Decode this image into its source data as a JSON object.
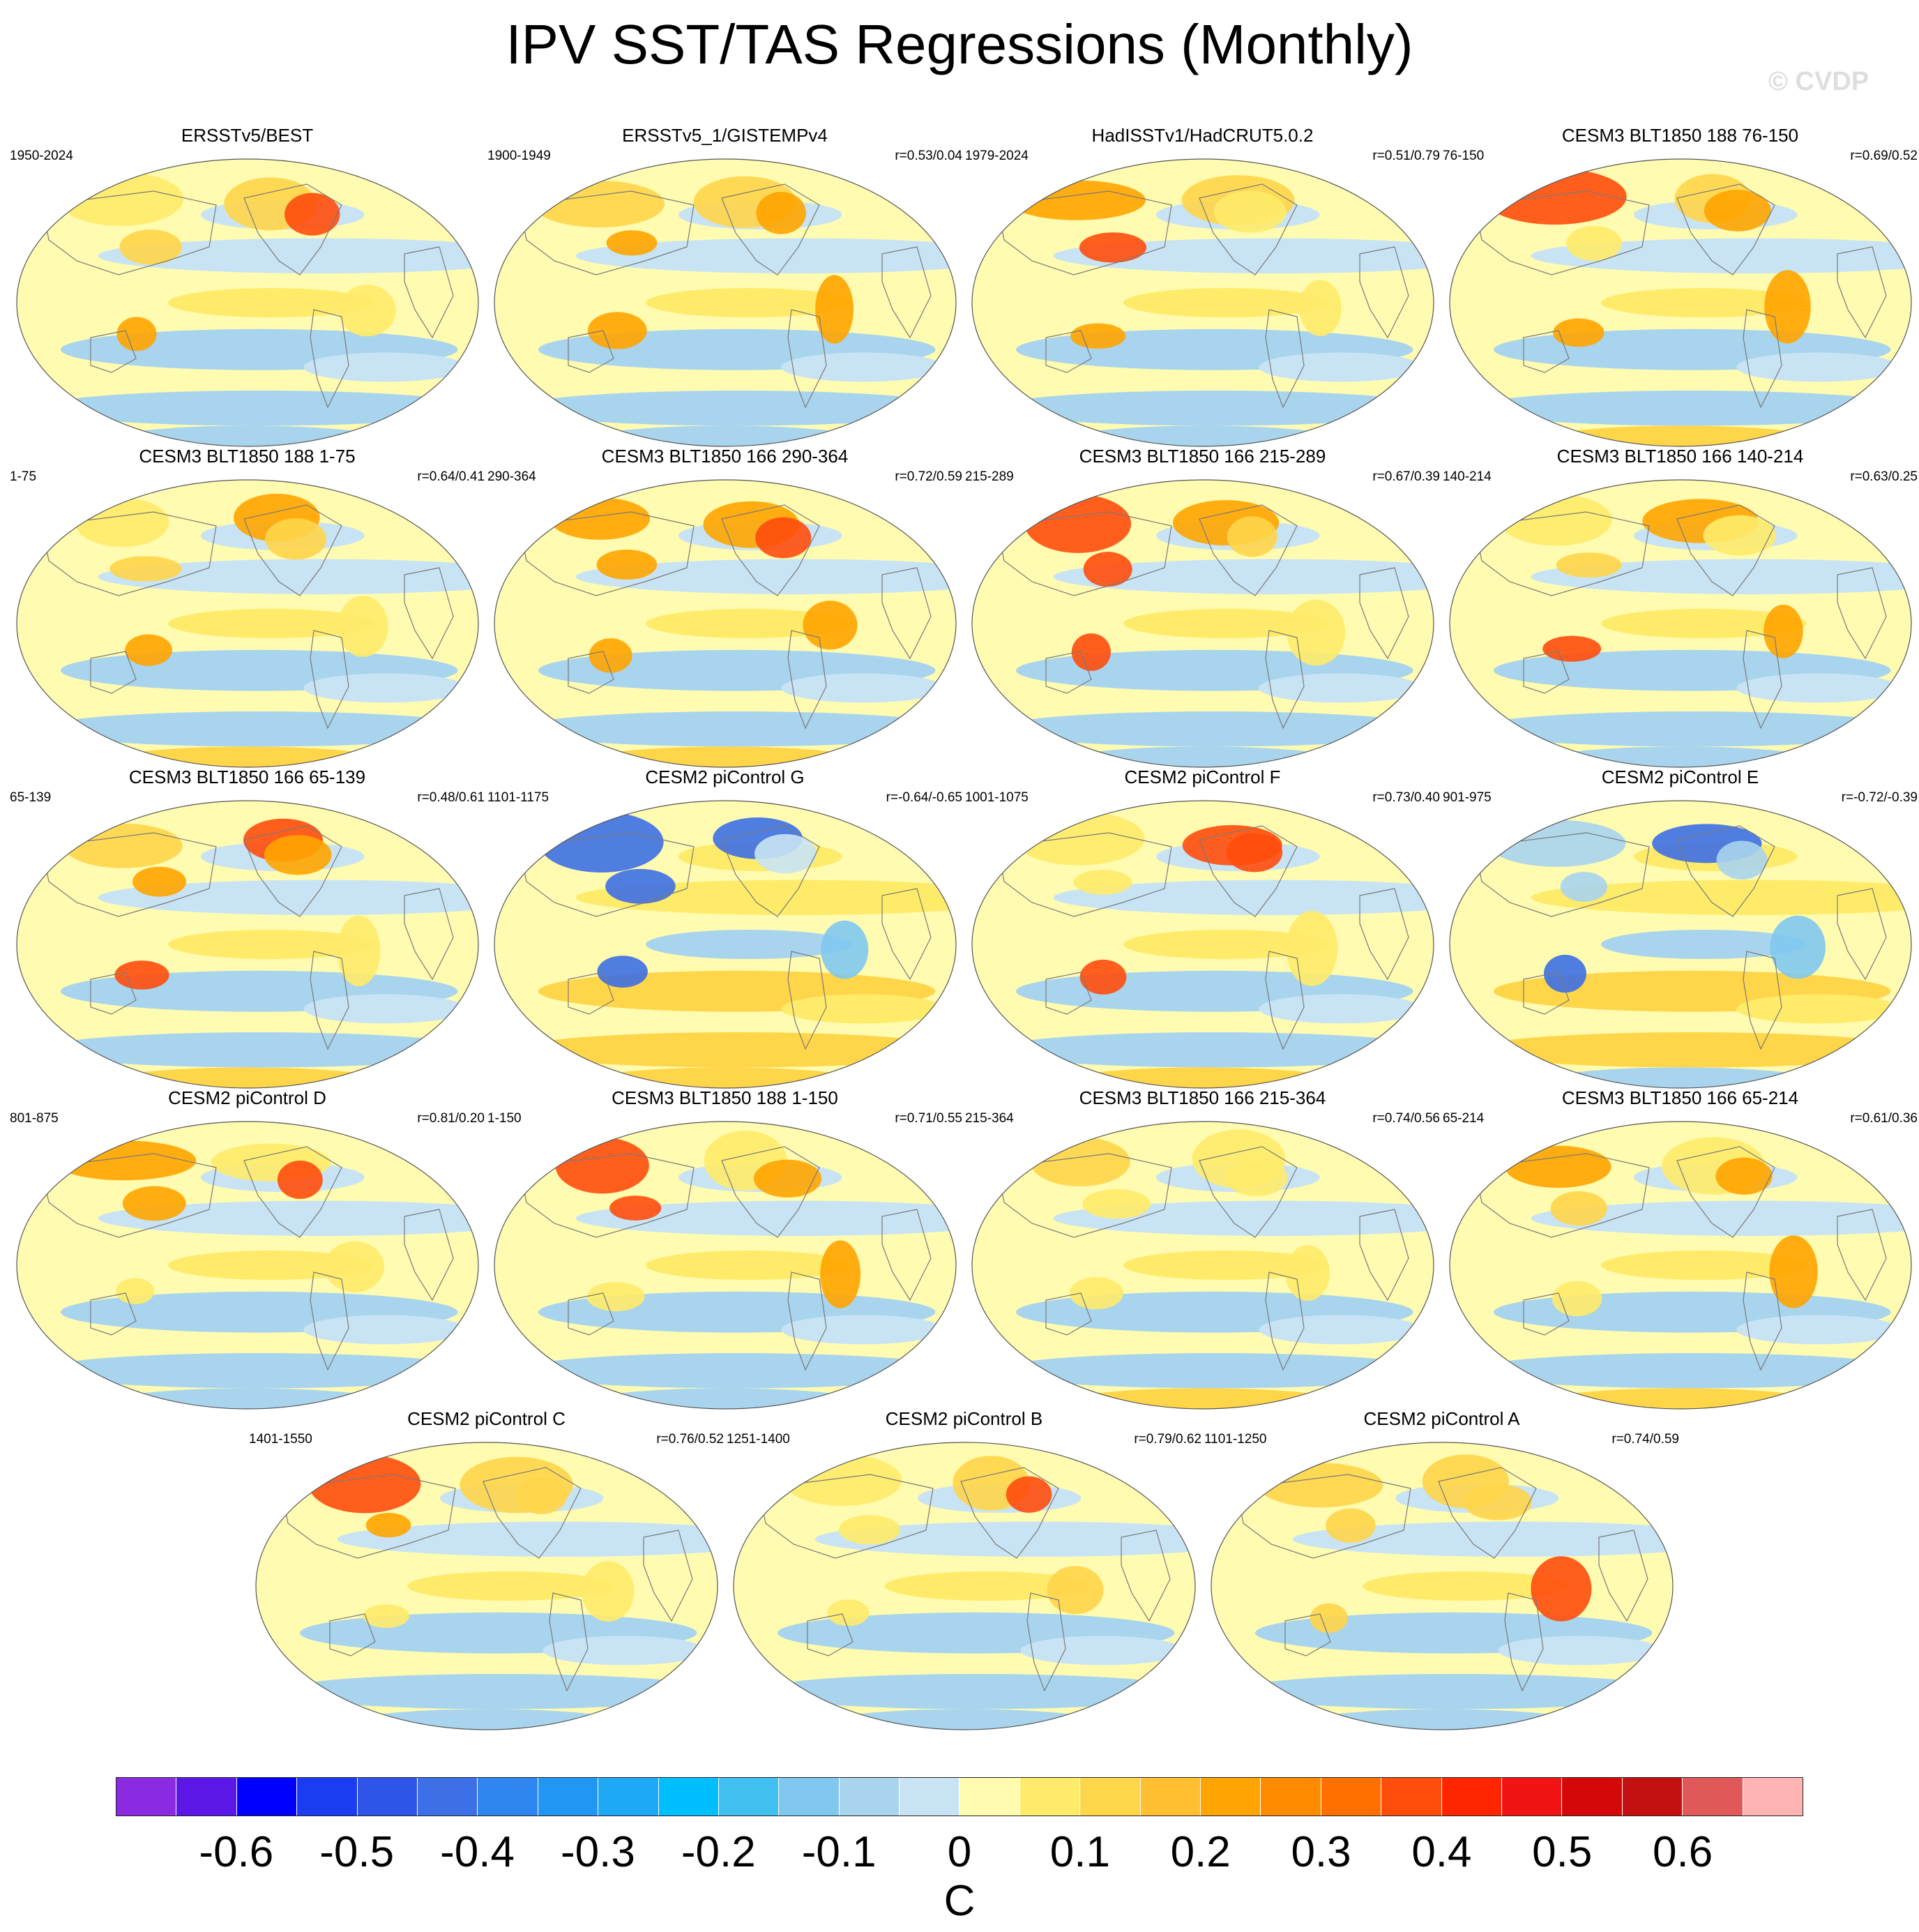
{
  "title": "IPV SST/TAS Regressions (Monthly)",
  "watermark": "© CVDP",
  "chart_data": {
    "type": "heatmap",
    "description_type": "map panels",
    "units": "C",
    "colorbar": {
      "colors": [
        "#8a2be2",
        "#5b17e6",
        "#0000ff",
        "#1b3cf0",
        "#2f55e8",
        "#3d6fe6",
        "#2f86f0",
        "#2196f3",
        "#1ea8f5",
        "#00bfff",
        "#3fc0f0",
        "#80c8f0",
        "#a8d4ee",
        "#c8e4f4",
        "#fffbb0",
        "#ffeb6a",
        "#ffd54a",
        "#ffbf30",
        "#ffa400",
        "#ff8c00",
        "#ff7000",
        "#ff4d0c",
        "#ff2500",
        "#f01414",
        "#d40808",
        "#c41010",
        "#e05858",
        "#ffb4b4"
      ],
      "tick_labels": [
        "-0.6",
        "-0.5",
        "-0.4",
        "-0.3",
        "-0.2",
        "-0.1",
        "0",
        "0.1",
        "0.2",
        "0.3",
        "0.4",
        "0.5",
        "0.6"
      ],
      "tick_values": [
        -0.6,
        -0.5,
        -0.4,
        -0.3,
        -0.2,
        -0.1,
        0,
        0.1,
        0.2,
        0.3,
        0.4,
        0.5,
        0.6
      ],
      "unit_label": "C"
    },
    "panels": [
      {
        "title": "ERSSTv5/BEST",
        "years": "1950-2024",
        "corr": ""
      },
      {
        "title": "ERSSTv5_1/GISTEMPv4",
        "years": "1900-1949",
        "corr": "r=0.53/0.04"
      },
      {
        "title": "HadISSTv1/HadCRUT5.0.2",
        "years": "1979-2024",
        "corr": "r=0.51/0.79"
      },
      {
        "title": "CESM3 BLT1850 188 76-150",
        "years": "76-150",
        "corr": "r=0.69/0.52"
      },
      {
        "title": "CESM3 BLT1850 188 1-75",
        "years": "1-75",
        "corr": "r=0.64/0.41"
      },
      {
        "title": "CESM3 BLT1850 166 290-364",
        "years": "290-364",
        "corr": "r=0.72/0.59"
      },
      {
        "title": "CESM3 BLT1850 166 215-289",
        "years": "215-289",
        "corr": "r=0.67/0.39"
      },
      {
        "title": "CESM3 BLT1850 166 140-214",
        "years": "140-214",
        "corr": "r=0.63/0.25"
      },
      {
        "title": "CESM3 BLT1850 166 65-139",
        "years": "65-139",
        "corr": "r=0.48/0.61"
      },
      {
        "title": "CESM2 piControl G",
        "years": "1101-1175",
        "corr": "r=-0.64/-0.65"
      },
      {
        "title": "CESM2 piControl F",
        "years": "1001-1075",
        "corr": "r=0.73/0.40"
      },
      {
        "title": "CESM2 piControl E",
        "years": "901-975",
        "corr": "r=-0.72/-0.39"
      },
      {
        "title": "CESM2 piControl D",
        "years": "801-875",
        "corr": "r=0.81/0.20"
      },
      {
        "title": "CESM3 BLT1850 188 1-150",
        "years": "1-150",
        "corr": "r=0.71/0.55"
      },
      {
        "title": "CESM3 BLT1850 166 215-364",
        "years": "215-364",
        "corr": "r=0.74/0.56"
      },
      {
        "title": "CESM3 BLT1850 166 65-214",
        "years": "65-214",
        "corr": "r=0.61/0.36"
      },
      {
        "title": "CESM2 piControl C",
        "years": "1401-1550",
        "corr": "r=0.76/0.52"
      },
      {
        "title": "CESM2 piControl B",
        "years": "1251-1400",
        "corr": "r=0.79/0.62"
      },
      {
        "title": "CESM2 piControl A",
        "years": "1101-1250",
        "corr": "r=0.74/0.59"
      }
    ]
  }
}
